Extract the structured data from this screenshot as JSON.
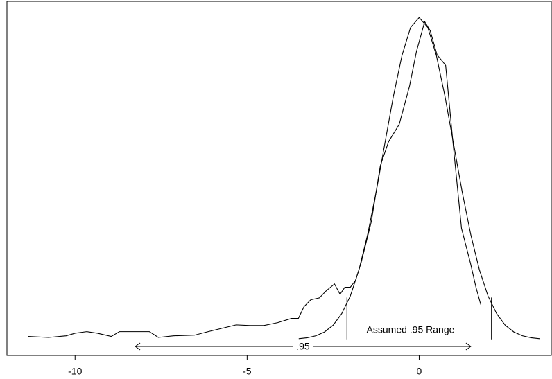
{
  "chart_data": {
    "type": "line",
    "xlim": [
      -11.98,
      3.84
    ],
    "ylim": [
      -0.05,
      1.05
    ],
    "xticks": [
      -10,
      -5,
      0
    ],
    "series": [
      {
        "color": "#000000",
        "x": [
          -11.37,
          -10.77,
          -10.26,
          -10,
          -9.66,
          -9.35,
          -8.95,
          -8.71,
          -7.84,
          -7.58,
          -7.14,
          -6.53,
          -6.13,
          -5.32,
          -4.92,
          -4.52,
          -4.11,
          -3.71,
          -3.51,
          -3.35,
          -3.15,
          -2.9,
          -2.7,
          -2.46,
          -2.3,
          -2.16,
          -2.0,
          -1.85,
          -1.69,
          -1.39,
          -1.13,
          -0.89,
          -0.58,
          -0.28,
          -0.08,
          0.16,
          0.32,
          0.52,
          0.69,
          0.77,
          0.97,
          1.23,
          1.49,
          1.65,
          1.79
        ],
        "values": [
          0.009,
          0.006,
          0.011,
          0.019,
          0.024,
          0.019,
          0.009,
          0.024,
          0.024,
          0.006,
          0.011,
          0.013,
          0.024,
          0.045,
          0.043,
          0.043,
          0.052,
          0.065,
          0.065,
          0.101,
          0.123,
          0.129,
          0.151,
          0.172,
          0.14,
          0.162,
          0.162,
          0.183,
          0.237,
          0.366,
          0.539,
          0.614,
          0.668,
          0.787,
          0.894,
          0.987,
          0.959,
          0.884,
          0.862,
          0.851,
          0.625,
          0.345,
          0.237,
          0.162,
          0.108
        ]
      },
      {
        "color": "#000000",
        "x": [
          -3.5,
          -3.25,
          -3,
          -2.75,
          -2.5,
          -2.25,
          -2,
          -1.75,
          -1.5,
          -1.25,
          -1,
          -0.75,
          -0.5,
          -0.25,
          0,
          0.25,
          0.5,
          0.75,
          1,
          1.25,
          1.5,
          1.75,
          2,
          2.25,
          2.5,
          2.75,
          3,
          3.25,
          3.5
        ],
        "values": [
          0.002,
          0.005,
          0.011,
          0.023,
          0.044,
          0.08,
          0.135,
          0.216,
          0.325,
          0.458,
          0.607,
          0.755,
          0.882,
          0.969,
          1,
          0.969,
          0.882,
          0.755,
          0.607,
          0.458,
          0.325,
          0.216,
          0.135,
          0.08,
          0.044,
          0.023,
          0.011,
          0.005,
          0.002
        ]
      }
    ],
    "vlines": [
      {
        "x": -2.1,
        "y": [
          0,
          0.13
        ]
      },
      {
        "x": 2.1,
        "y": [
          0,
          0.13
        ]
      }
    ],
    "range_arrow": {
      "label": ".95",
      "x": [
        -8.25,
        1.5
      ],
      "y": -0.022
    },
    "annotation": {
      "text": "Assumed .95 Range",
      "x": -1.53,
      "y": 0.028
    }
  }
}
